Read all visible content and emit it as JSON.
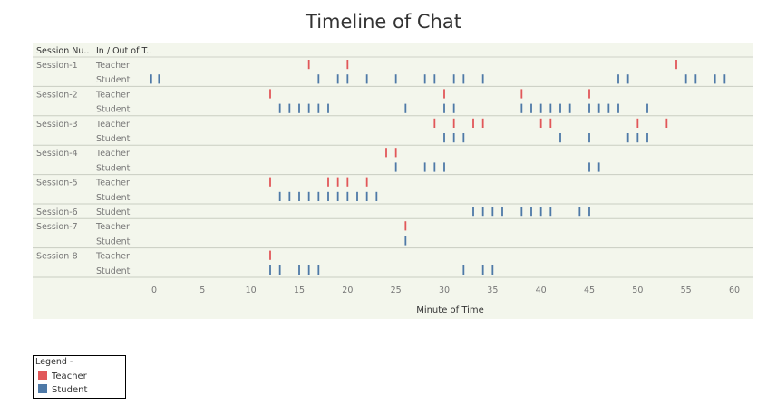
{
  "chart_data": {
    "type": "scatter",
    "mark": "tick",
    "title": "Timeline of Chat",
    "xlabel": "Minute of Time",
    "xlim": [
      -4,
      61
    ],
    "xticks": [
      0,
      5,
      10,
      15,
      20,
      25,
      30,
      35,
      40,
      45,
      50,
      55,
      60
    ],
    "grid": false,
    "column_headers": [
      "Session Nu..",
      "In / Out of T.."
    ],
    "rows": [
      {
        "session": "Session-1",
        "role": "Teacher",
        "x": [
          16,
          20,
          54
        ]
      },
      {
        "session": "Session-1",
        "role": "Student",
        "x": [
          -0.3,
          0.5,
          17,
          19,
          20,
          22,
          25,
          28,
          29,
          31,
          32,
          34,
          48,
          49,
          55,
          56,
          58,
          59
        ]
      },
      {
        "session": "Session-2",
        "role": "Teacher",
        "x": [
          12,
          30,
          38,
          45
        ]
      },
      {
        "session": "Session-2",
        "role": "Student",
        "x": [
          13,
          14,
          15,
          16,
          17,
          18,
          26,
          30,
          31,
          38,
          39,
          40,
          41,
          42,
          43,
          45,
          46,
          47,
          48,
          51
        ]
      },
      {
        "session": "Session-3",
        "role": "Teacher",
        "x": [
          29,
          31,
          33,
          34,
          40,
          41,
          50,
          53
        ]
      },
      {
        "session": "Session-3",
        "role": "Student",
        "x": [
          30,
          31,
          32,
          42,
          45,
          49,
          50,
          51
        ]
      },
      {
        "session": "Session-4",
        "role": "Teacher",
        "x": [
          24,
          25
        ]
      },
      {
        "session": "Session-4",
        "role": "Student",
        "x": [
          25,
          28,
          29,
          30,
          45,
          46
        ]
      },
      {
        "session": "Session-5",
        "role": "Teacher",
        "x": [
          12,
          18,
          19,
          20,
          22
        ]
      },
      {
        "session": "Session-5",
        "role": "Student",
        "x": [
          13,
          14,
          15,
          16,
          17,
          18,
          19,
          20,
          21,
          22,
          23
        ]
      },
      {
        "session": "Session-6",
        "role": "Student",
        "x": [
          33,
          34,
          35,
          36,
          38,
          39,
          40,
          41,
          44,
          45
        ]
      },
      {
        "session": "Session-7",
        "role": "Teacher",
        "x": [
          26
        ]
      },
      {
        "session": "Session-7",
        "role": "Student",
        "x": [
          26
        ]
      },
      {
        "session": "Session-8",
        "role": "Teacher",
        "x": [
          12
        ]
      },
      {
        "session": "Session-8",
        "role": "Student",
        "x": [
          12,
          13,
          15,
          16,
          17,
          32,
          34,
          35
        ]
      }
    ],
    "colors": {
      "Teacher": "#e15759",
      "Student": "#4e79a7"
    },
    "legend": {
      "title": "Legend -",
      "items": [
        {
          "label": "Teacher",
          "color": "#e15759"
        },
        {
          "label": "Student",
          "color": "#4e79a7"
        }
      ],
      "position": "bottom-left"
    }
  }
}
